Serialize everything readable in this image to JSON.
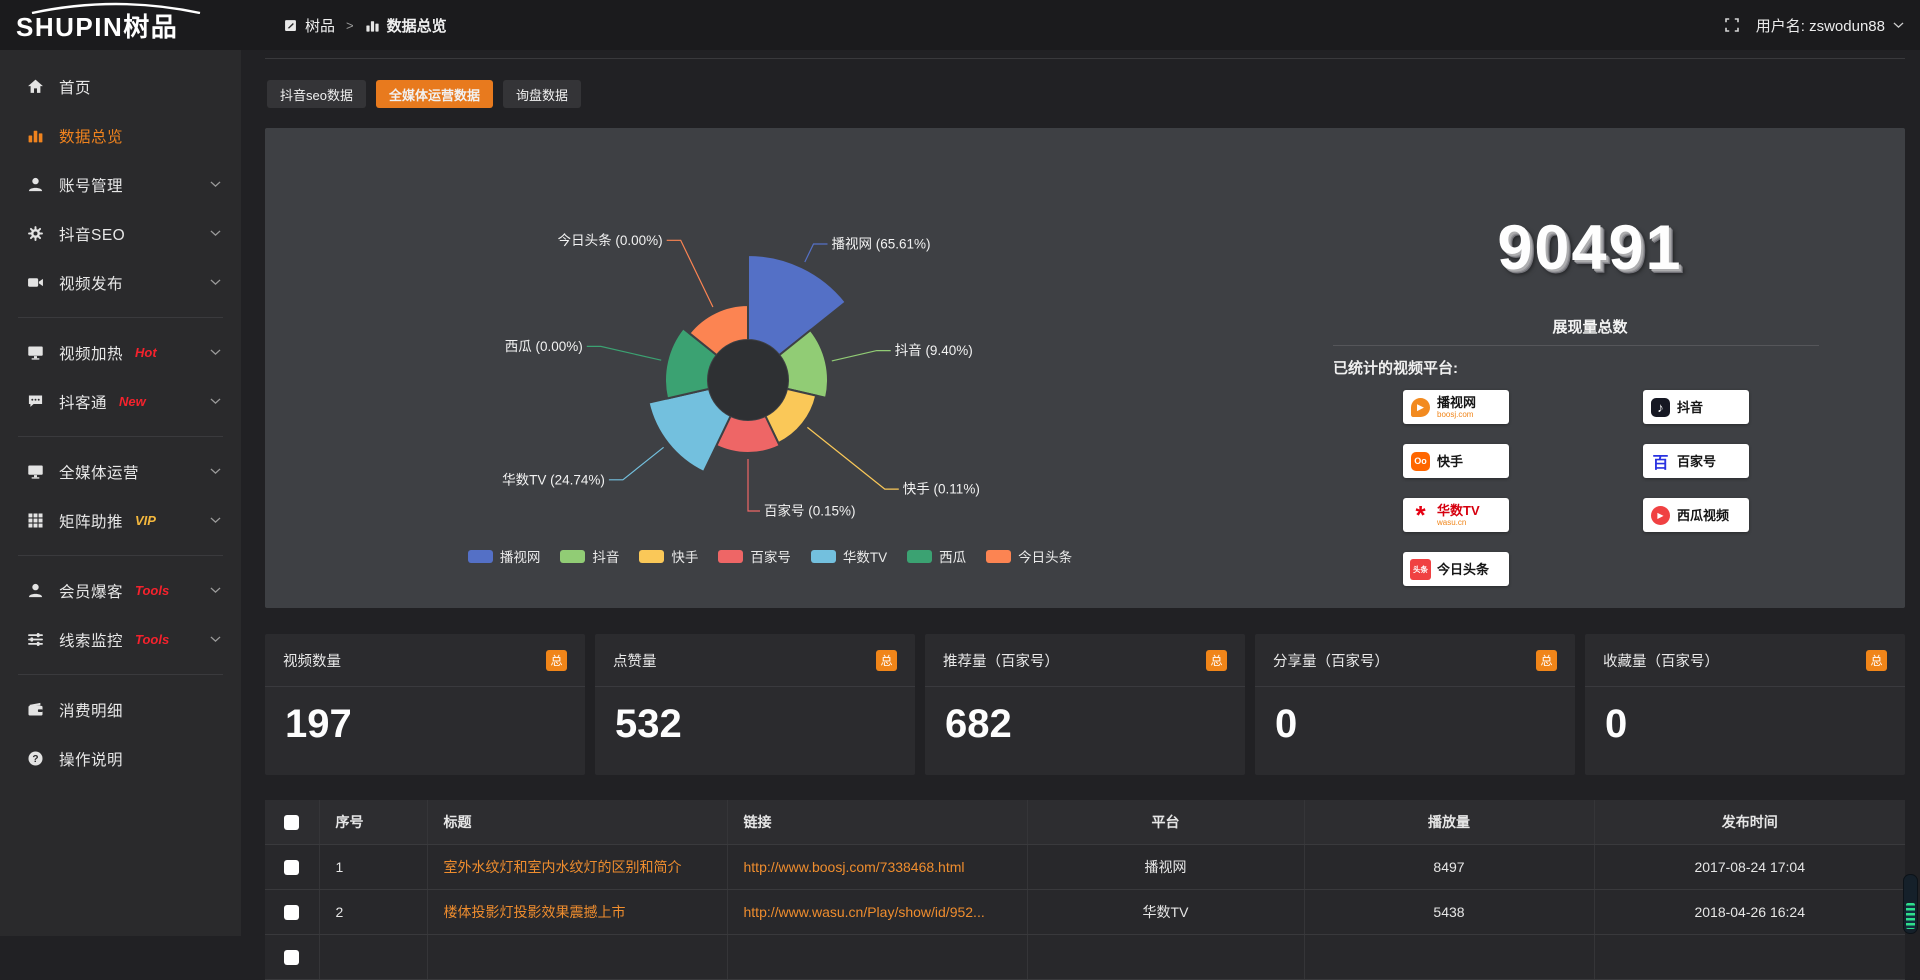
{
  "topbar": {
    "logo": "SHUPIN树品",
    "breadcrumb": {
      "root": "树品",
      "separator": ">",
      "current": "数据总览"
    },
    "user": {
      "label": "用户名: zswodun88"
    }
  },
  "sidebar": {
    "items": [
      {
        "icon": "home",
        "label": "首页"
      },
      {
        "icon": "chart",
        "label": "数据总览",
        "active": true
      },
      {
        "icon": "user",
        "label": "账号管理",
        "chevron": true
      },
      {
        "icon": "gear",
        "label": "抖音SEO",
        "chevron": true
      },
      {
        "icon": "video",
        "label": "视频发布",
        "chevron": true,
        "divider_after": true
      },
      {
        "icon": "monitor",
        "label": "视频加热",
        "tag": "Hot",
        "tag_color": "#f5222d",
        "chevron": true
      },
      {
        "icon": "chat",
        "label": "抖客通",
        "tag": "New",
        "tag_color": "#f5222d",
        "chevron": true,
        "divider_after": true
      },
      {
        "icon": "monitor",
        "label": "全媒体运营",
        "chevron": true
      },
      {
        "icon": "grid",
        "label": "矩阵助推",
        "tag": "VIP",
        "tag_color": "#f5b83d",
        "chevron": true,
        "divider_after": true
      },
      {
        "icon": "user",
        "label": "会员爆客",
        "tag": "Tools",
        "tag_color": "#f5222d",
        "chevron": true
      },
      {
        "icon": "sliders",
        "label": "线索监控",
        "tag": "Tools",
        "tag_color": "#f5222d",
        "chevron": true,
        "divider_after": true
      },
      {
        "icon": "wallet",
        "label": "消费明细"
      },
      {
        "icon": "question",
        "label": "操作说明"
      }
    ]
  },
  "tabs": [
    {
      "label": "抖音seo数据",
      "active": false
    },
    {
      "label": "全媒体运营数据",
      "active": true
    },
    {
      "label": "询盘数据",
      "active": false
    }
  ],
  "chart_data": {
    "type": "pie",
    "variant": "nightingale_rose",
    "label_format": "{name} ({value}%)",
    "legend_position": "bottom",
    "series": [
      {
        "name": "播视网",
        "value": 65.61,
        "color": "#5470c6",
        "display_radius": 125,
        "leader_len": 26
      },
      {
        "name": "抖音",
        "value": 9.4,
        "color": "#91cc75",
        "display_radius": 80,
        "leader_len": 52
      },
      {
        "name": "快手",
        "value": 0.11,
        "color": "#fac858",
        "display_radius": 70,
        "leader_len": 105
      },
      {
        "name": "百家号",
        "value": 0.15,
        "color": "#ee6666",
        "display_radius": 73,
        "leader_len": 58
      },
      {
        "name": "华数TV",
        "value": 24.74,
        "color": "#73c0de",
        "display_radius": 102,
        "leader_len": 58
      },
      {
        "name": "西瓜",
        "value": 0.0,
        "color": "#3ba272",
        "display_radius": 83,
        "leader_len": 68
      },
      {
        "name": "今日头条",
        "value": 0.0,
        "color": "#fc8452",
        "display_radius": 75,
        "leader_len": 80
      }
    ]
  },
  "summary": {
    "total": "90491",
    "total_label": "展现量总数",
    "platforms_title": "已统计的视频平台:",
    "platform_columns": [
      [
        {
          "name": "播视网",
          "sub": "boosj.com",
          "logo": "boosj"
        },
        {
          "name": "快手",
          "logo": "kuaishou"
        },
        {
          "name": "华数TV",
          "sub": "wasu.cn",
          "logo": "wasu"
        },
        {
          "name": "今日头条",
          "logo": "toutiao"
        }
      ],
      [
        {
          "name": "抖音",
          "logo": "douyin"
        },
        {
          "name": "百家号",
          "logo": "baijiahao"
        },
        {
          "name": "西瓜视频",
          "logo": "xigua"
        }
      ]
    ]
  },
  "stat_cards": [
    {
      "label": "视频数量",
      "badge": "总",
      "value": "197"
    },
    {
      "label": "点赞量",
      "badge": "总",
      "value": "532"
    },
    {
      "label": "推荐量（百家号）",
      "badge": "总",
      "value": "682"
    },
    {
      "label": "分享量（百家号）",
      "badge": "总",
      "value": "0"
    },
    {
      "label": "收藏量（百家号）",
      "badge": "总",
      "value": "0"
    }
  ],
  "table": {
    "headers": [
      "序号",
      "标题",
      "链接",
      "平台",
      "播放量",
      "发布时间"
    ],
    "rows": [
      {
        "num": "1",
        "title": "室外水纹灯和室内水纹灯的区别和简介",
        "link": "http://www.boosj.com/7338468.html",
        "platform": "播视网",
        "plays": "8497",
        "time": "2017-08-24 17:04"
      },
      {
        "num": "2",
        "title": "楼体投影灯投影效果震撼上市",
        "link": "http://www.wasu.cn/Play/show/id/952...",
        "platform": "华数TV",
        "plays": "5438",
        "time": "2018-04-26 16:24"
      }
    ]
  },
  "colors": {
    "accent": "#e87a1e",
    "badge": "#f08519",
    "link": "#ef8d2e",
    "panel": "#3e4044"
  }
}
